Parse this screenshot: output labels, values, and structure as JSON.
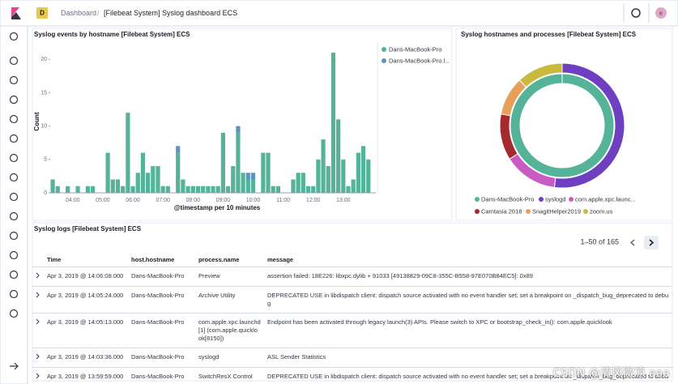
{
  "header": {
    "space_badge": "D",
    "breadcrumbs": [
      "Dashboard",
      "[Filebeat System] Syslog dashboard ECS"
    ],
    "avatar": "e"
  },
  "histogram": {
    "type": "bar",
    "title": "Syslog events by hostname [Filebeat System] ECS",
    "y_label": "Count",
    "x_label": "@timestamp per 10 minutes",
    "categories": [
      null,
      null,
      null,
      null,
      "04:00",
      null,
      null,
      null,
      null,
      null,
      "05:00",
      null,
      null,
      null,
      null,
      null,
      "06:00",
      null,
      null,
      null,
      null,
      null,
      "07:00",
      null,
      null,
      null,
      null,
      null,
      "08:00",
      null,
      null,
      null,
      null,
      null,
      "09:00",
      null,
      null,
      null,
      null,
      null,
      "10:00",
      null,
      null,
      null,
      null,
      null,
      "11:00",
      null,
      null,
      null,
      null,
      null,
      "12:00",
      null,
      null,
      null,
      null,
      null,
      "13:00",
      null,
      null,
      null,
      null,
      null,
      null
    ],
    "series": [
      {
        "name": "Dans-MacBook-Pro",
        "color": "#54b399",
        "values": [
          2,
          1,
          0,
          1,
          0,
          1,
          0,
          1,
          1,
          0,
          0,
          6,
          2,
          2,
          1,
          12,
          1,
          3,
          6,
          3,
          4,
          4,
          1,
          1,
          0,
          6,
          2,
          1,
          1,
          1,
          1,
          1,
          1,
          1,
          9,
          1,
          4,
          9,
          3,
          2,
          2,
          0,
          6,
          6,
          1,
          1,
          0,
          0,
          2,
          3,
          3,
          1,
          1,
          5,
          8,
          4,
          21,
          11,
          5,
          1,
          2,
          6,
          7,
          5,
          0
        ]
      },
      {
        "name": "Dans-MacBook-Pro.l...",
        "color": "#6092c0",
        "values": [
          0,
          0,
          0,
          0,
          0,
          0,
          0,
          0,
          0,
          0,
          0,
          0,
          0,
          0,
          0,
          0,
          0,
          0,
          0,
          0,
          0,
          0,
          0,
          0,
          0,
          1,
          0,
          0,
          0,
          0,
          0,
          0,
          0,
          0,
          0,
          0,
          0,
          1,
          0,
          1,
          1,
          0,
          0,
          0,
          0,
          0,
          0,
          0,
          0,
          0,
          0,
          0,
          0,
          0,
          0,
          0,
          0,
          0,
          0,
          0,
          0,
          0,
          0,
          0,
          0
        ]
      }
    ],
    "ylim": [
      0,
      21
    ],
    "yticks": [
      0,
      5,
      10,
      15,
      20
    ],
    "stacked": true
  },
  "donut": {
    "type": "pie",
    "title": "Syslog hostnames and processes [Filebeat System] ECS",
    "inner": [
      {
        "name": "Dans-MacBook-Pro",
        "color": "#54b399",
        "value": 100
      }
    ],
    "outer": [
      {
        "name": "syslogd",
        "color": "#6f3fc1",
        "value": 52
      },
      {
        "name": "com.apple.xpc.launc...",
        "color": "#ca5bc4",
        "value": 14
      },
      {
        "name": "Camtasia 2018",
        "color": "#a52a2f",
        "value": 12
      },
      {
        "name": "SnagitHelper2019",
        "color": "#e7a05a",
        "value": 10
      },
      {
        "name": "zoom.us",
        "color": "#c9b93d",
        "value": 12
      }
    ]
  },
  "table": {
    "title": "Syslog logs [Filebeat System] ECS",
    "pagination": "1–50 of 165",
    "columns": [
      "Time",
      "host.hostname",
      "process.name",
      "message"
    ],
    "rows": [
      [
        "Apr 3, 2019 @ 14:06:08.000",
        "Dans-MacBook-Pro",
        "Preview",
        "assertion failed: 18E226: libxpc.dylib + 91033 [49138829-09C8-355C-B558-97E070B84EC5]: 0x89"
      ],
      [
        "Apr 3, 2019 @ 14:05:24.000",
        "Dans-MacBook-Pro",
        "Archive Utility",
        "DEPRECATED USE in libdispatch client: dispatch source activated with no event handler set; set a breakpoint on _dispatch_bug_deprecated to debug"
      ],
      [
        "Apr 3, 2019 @ 14:05:13.000",
        "Dans-MacBook-Pro",
        "com.apple.xpc.launchd[1] (com.apple.quicklook[8150])",
        "Endpoint has been activated through legacy launch(3) APIs. Please switch to XPC or bootstrap_check_in(): com.apple.quicklook"
      ],
      [
        "Apr 3, 2019 @ 14:03:36.000",
        "Dans-MacBook-Pro",
        "syslogd",
        "ASL Sender Statistics"
      ],
      [
        "Apr 3, 2019 @ 13:59:59.000",
        "Dans-MacBook-Pro",
        "SwitchResX Control",
        "DEPRECATED USE in libdispatch client: dispatch source activated with no event handler set; set a breakpoint on _dispatch_bug_deprecated to debug"
      ]
    ]
  },
  "watermark": "CSDN @清风微凉 aaa"
}
